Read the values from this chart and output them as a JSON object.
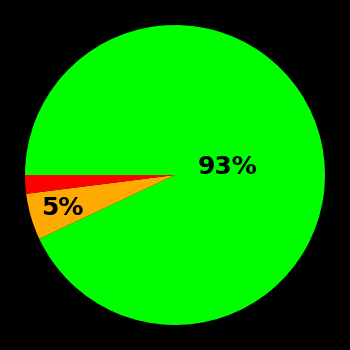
{
  "slices": [
    93,
    5,
    2
  ],
  "colors": [
    "#00ff00",
    "#ffaa00",
    "#ff0000"
  ],
  "labels": [
    "93%",
    "5%",
    ""
  ],
  "background_color": "#000000",
  "text_color": "#000000",
  "label_fontsize": 18,
  "startangle": 180,
  "figsize": [
    3.5,
    3.5
  ],
  "dpi": 100
}
